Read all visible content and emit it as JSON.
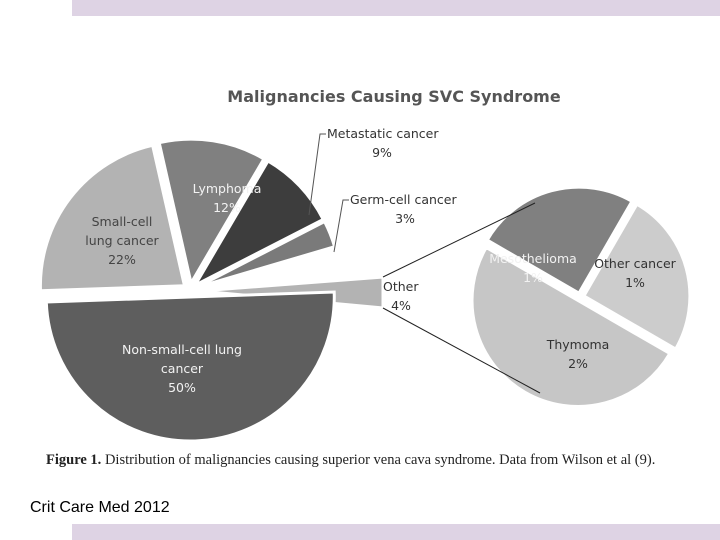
{
  "page": {
    "source": "Crit Care Med 2012",
    "caption_label": "Figure 1.",
    "caption_text": "Distribution of malignancies causing superior vena cava syndrome. Data from Wilson et al (9)."
  },
  "chart_data": {
    "type": "pie",
    "title": "Malignancies Causing SVC Syndrome",
    "slices": [
      {
        "label": [
          "Small-cell",
          "lung cancer"
        ],
        "value_label": "22%",
        "value": 22,
        "color": "#b3b3b3",
        "label_color": "#444444"
      },
      {
        "label": [
          "Lymphoma"
        ],
        "value_label": "12%",
        "value": 12,
        "color": "#808080",
        "label_color": "#f2f2f2"
      },
      {
        "label": [
          "Metastatic cancer"
        ],
        "value_label": "9%",
        "value": 9,
        "color": "#3d3d3d",
        "label_color": "#333333",
        "callout": true
      },
      {
        "label": [
          "Germ-cell cancer"
        ],
        "value_label": "3%",
        "value": 3,
        "color": "#7a7a7a",
        "label_color": "#333333",
        "callout": true
      },
      {
        "label": [
          "Other"
        ],
        "value_label": "4%",
        "value": 4,
        "color": "#b3b3b3",
        "label_color": "#333333",
        "exploded": true
      },
      {
        "label": [
          "Non-small-cell lung",
          "cancer"
        ],
        "value_label": "50%",
        "value": 50,
        "color": "#5e5e5e",
        "label_color": "#f2f2f2"
      }
    ],
    "other_breakdown": [
      {
        "label": [
          "Mesothelioma"
        ],
        "value_label": "1%",
        "value": 1,
        "color": "#808080",
        "label_color": "#f2f2f2"
      },
      {
        "label": [
          "Other cancer"
        ],
        "value_label": "1%",
        "value": 1,
        "color": "#cccccc",
        "label_color": "#333333"
      },
      {
        "label": [
          "Thymoma"
        ],
        "value_label": "2%",
        "value": 2,
        "color": "#c6c6c6",
        "label_color": "#333333"
      }
    ]
  }
}
